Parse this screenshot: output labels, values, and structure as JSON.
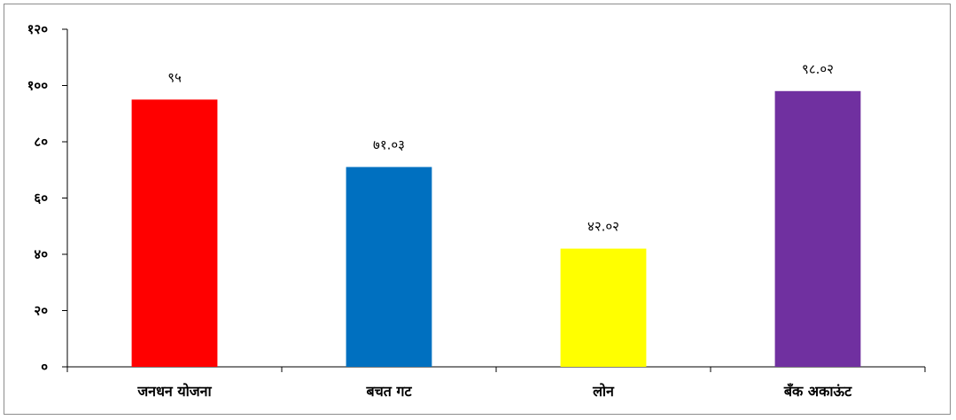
{
  "chart_data": {
    "type": "bar",
    "categories": [
      "जनधन योजना",
      "बचत गट",
      "लोन",
      "बँक अकाऊंट"
    ],
    "values": [
      95,
      71.03,
      42.02,
      98.02
    ],
    "data_labels": [
      "९५",
      "७१.०३",
      "४२.०२",
      "९८.०२"
    ],
    "colors": [
      "#ff0000",
      "#0070c0",
      "#ffff00",
      "#7030a0"
    ],
    "ylim": [
      0,
      120
    ],
    "yticks": [
      0,
      20,
      40,
      60,
      80,
      100,
      120
    ],
    "ytick_labels": [
      "०",
      "२०",
      "४०",
      "६०",
      "८०",
      "१००",
      "१२०"
    ],
    "title": "",
    "xlabel": "",
    "ylabel": "",
    "grid": false,
    "legend": "none"
  }
}
